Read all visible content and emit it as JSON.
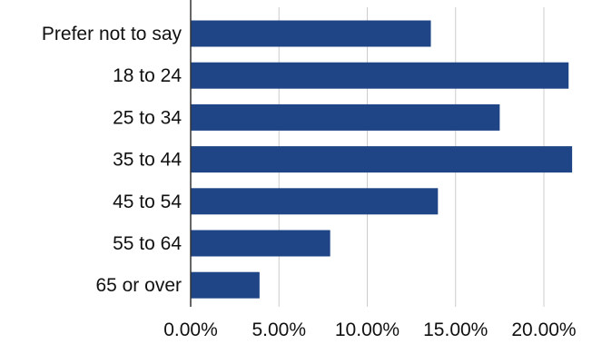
{
  "chart_data": {
    "type": "bar",
    "orientation": "horizontal",
    "categories": [
      "Prefer not to say",
      "18 to 24",
      "25 to 34",
      "35 to 44",
      "45 to 54",
      "55 to 64",
      "65 or over"
    ],
    "values": [
      13.6,
      21.4,
      17.5,
      21.6,
      14.0,
      7.9,
      3.9
    ],
    "xlim": [
      0,
      22
    ],
    "x_ticks": [
      0,
      5,
      10,
      15,
      20
    ],
    "x_tick_labels": [
      "0.00%",
      "5.00%",
      "10.00%",
      "15.00%",
      "20.00%"
    ],
    "title": "",
    "xlabel": "",
    "ylabel": "",
    "grid": "vertical",
    "legend": "none",
    "bar_color": "#1f4587",
    "grid_color": "#cccccc",
    "axis_color": "#333333"
  }
}
